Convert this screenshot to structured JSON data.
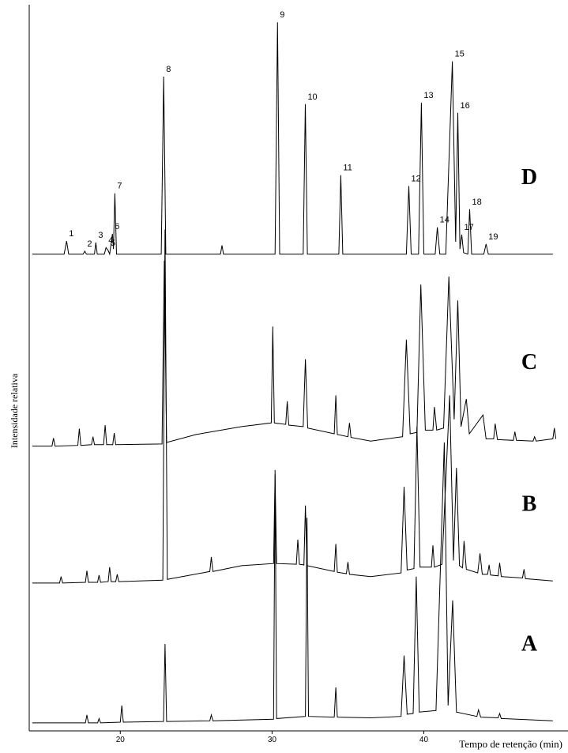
{
  "chart_data": {
    "type": "chromatogram",
    "ylabel": "Intensidade relativa",
    "xlabel": "Tempo de retenção (min)",
    "xlim": [
      14,
      49.5
    ],
    "ylim": [
      0,
      100
    ],
    "xticks": [
      20,
      30,
      40
    ],
    "color": "#000000",
    "series": [
      {
        "name": "D",
        "color": "#000000",
        "x": [
          14.2,
          16.3,
          16.46,
          16.6,
          17.55,
          17.66,
          17.77,
          18.3,
          18.39,
          18.48,
          18.95,
          19.06,
          19.2,
          19.3,
          19.48,
          19.55,
          19.64,
          19.75,
          22.7,
          22.86,
          23.0,
          26.6,
          26.7,
          26.8,
          30.2,
          30.36,
          30.5,
          32.05,
          32.19,
          32.33,
          34.4,
          34.53,
          34.66,
          38.85,
          39.01,
          39.17,
          39.65,
          39.84,
          40.0,
          40.75,
          40.89,
          41.05,
          41.45,
          41.88,
          42.1,
          42.24,
          42.38,
          42.5,
          42.62,
          42.9,
          43.02,
          43.15,
          43.95,
          44.1,
          44.25,
          48.5
        ],
        "values": [
          65.8,
          65.8,
          67.6,
          65.8,
          65.8,
          66.2,
          65.8,
          65.8,
          67.4,
          65.8,
          65.8,
          66.7,
          66.3,
          65.8,
          68.6,
          66.5,
          74.2,
          65.8,
          65.8,
          90.3,
          65.8,
          65.8,
          67.0,
          65.8,
          65.8,
          97.8,
          65.8,
          65.8,
          86.5,
          65.8,
          65.8,
          76.7,
          65.8,
          65.8,
          75.2,
          65.8,
          65.8,
          86.7,
          65.8,
          65.8,
          69.5,
          65.8,
          65.8,
          92.4,
          67.5,
          85.3,
          66.5,
          68.5,
          66.0,
          65.8,
          72.0,
          65.8,
          65.8,
          67.2,
          65.8,
          65.8
        ]
      },
      {
        "name": "C",
        "color": "#000000",
        "x": [
          14.2,
          15.5,
          15.6,
          15.7,
          17.2,
          17.3,
          17.4,
          18.1,
          18.2,
          18.3,
          18.9,
          19.0,
          19.1,
          19.5,
          19.6,
          19.7,
          22.75,
          22.9,
          23.05,
          25.0,
          28.0,
          29.95,
          30.05,
          30.15,
          30.9,
          31.0,
          31.1,
          32.05,
          32.2,
          32.35,
          34.1,
          34.2,
          34.3,
          35.0,
          35.1,
          35.2,
          36.5,
          38.6,
          38.85,
          39.1,
          39.55,
          39.8,
          40.1,
          40.6,
          40.7,
          40.85,
          41.3,
          41.65,
          42.0,
          42.24,
          42.45,
          42.8,
          43.0,
          43.9,
          44.1,
          44.6,
          44.7,
          44.85,
          45.9,
          46.0,
          46.1,
          47.2,
          47.3,
          47.4,
          48.5,
          48.6,
          48.7
        ],
        "values": [
          39.3,
          39.3,
          40.4,
          39.3,
          39.4,
          41.7,
          39.4,
          39.5,
          40.6,
          39.5,
          39.5,
          42.2,
          39.5,
          39.5,
          41.1,
          39.5,
          39.6,
          64.9,
          39.8,
          40.9,
          42.0,
          42.5,
          55.8,
          42.5,
          42.3,
          45.5,
          42.2,
          42.0,
          51.3,
          41.8,
          41.0,
          46.3,
          40.9,
          40.6,
          42.5,
          40.5,
          40.0,
          40.6,
          54.0,
          41.0,
          41.2,
          61.6,
          41.5,
          41.5,
          44.7,
          41.5,
          41.8,
          62.7,
          43.0,
          59.4,
          42.0,
          45.8,
          41.0,
          43.6,
          40.3,
          40.3,
          42.4,
          40.2,
          40.1,
          41.3,
          40.1,
          40.0,
          40.6,
          40.0,
          40.3,
          41.8,
          40.3
        ]
      },
      {
        "name": "B",
        "color": "#000000",
        "x": [
          14.2,
          16.0,
          16.1,
          16.2,
          17.7,
          17.8,
          17.9,
          18.5,
          18.6,
          18.7,
          19.2,
          19.3,
          19.4,
          19.7,
          19.8,
          19.9,
          22.8,
          22.95,
          23.1,
          25.9,
          26.0,
          26.1,
          28.0,
          30.1,
          30.2,
          30.3,
          31.6,
          31.7,
          31.8,
          32.1,
          32.2,
          32.3,
          34.1,
          34.2,
          34.3,
          34.9,
          35.0,
          35.1,
          36.5,
          38.5,
          38.7,
          38.9,
          39.35,
          39.55,
          39.75,
          40.5,
          40.6,
          40.7,
          41.2,
          41.7,
          41.95,
          42.15,
          42.35,
          42.55,
          42.65,
          42.8,
          43.55,
          43.7,
          43.85,
          44.2,
          44.3,
          44.4,
          44.9,
          45.0,
          45.1,
          46.5,
          46.6,
          46.7,
          48.5
        ],
        "values": [
          20.4,
          20.4,
          21.3,
          20.4,
          20.5,
          22.1,
          20.5,
          20.5,
          21.5,
          20.5,
          20.6,
          22.6,
          20.6,
          20.6,
          21.6,
          20.6,
          20.8,
          69.2,
          20.9,
          22.0,
          24.0,
          22.0,
          22.8,
          23.1,
          35.4,
          23.1,
          23.0,
          26.4,
          23.0,
          22.9,
          31.1,
          22.8,
          22.0,
          25.8,
          21.9,
          21.7,
          23.3,
          21.6,
          21.3,
          21.8,
          33.7,
          22.2,
          22.4,
          42.0,
          22.6,
          22.6,
          25.6,
          22.6,
          23.0,
          46.3,
          23.5,
          36.3,
          22.8,
          22.5,
          26.2,
          22.3,
          21.8,
          24.5,
          21.6,
          21.6,
          22.9,
          21.5,
          21.4,
          23.2,
          21.3,
          21.1,
          22.3,
          21.0,
          20.7
        ]
      },
      {
        "name": "A",
        "color": "#000000",
        "x": [
          14.2,
          17.7,
          17.8,
          17.9,
          18.5,
          18.6,
          18.7,
          20.0,
          20.1,
          20.2,
          22.85,
          22.95,
          23.05,
          25.9,
          26.0,
          26.1,
          30.1,
          30.2,
          30.3,
          32.2,
          32.3,
          32.4,
          34.1,
          34.2,
          34.3,
          36.5,
          38.5,
          38.7,
          38.9,
          39.3,
          39.5,
          39.7,
          40.8,
          41.35,
          41.6,
          41.9,
          42.15,
          43.5,
          43.6,
          43.75,
          44.9,
          45.0,
          45.1,
          48.5
        ],
        "values": [
          1.1,
          1.1,
          2.2,
          1.1,
          1.1,
          1.7,
          1.1,
          1.2,
          3.5,
          1.2,
          1.3,
          12.0,
          1.3,
          1.4,
          2.2,
          1.4,
          1.6,
          36.0,
          1.7,
          2.0,
          29.4,
          2.0,
          1.9,
          6.0,
          1.9,
          1.8,
          2.0,
          10.4,
          2.3,
          2.4,
          21.3,
          2.6,
          2.8,
          39.8,
          3.5,
          18.0,
          2.6,
          2.0,
          2.9,
          1.9,
          1.8,
          2.4,
          1.7,
          1.4
        ]
      }
    ],
    "peaks": [
      {
        "label": "1",
        "x": 16.46
      },
      {
        "label": "2",
        "x": 17.66
      },
      {
        "label": "3",
        "x": 18.39
      },
      {
        "label": "4",
        "x": 19.06
      },
      {
        "label": "5",
        "x": 19.2
      },
      {
        "label": "6",
        "x": 19.48
      },
      {
        "label": "7",
        "x": 19.64
      },
      {
        "label": "8",
        "x": 22.86
      },
      {
        "label": "9",
        "x": 30.36
      },
      {
        "label": "10",
        "x": 32.19
      },
      {
        "label": "11",
        "x": 34.53
      },
      {
        "label": "12",
        "x": 39.01
      },
      {
        "label": "13",
        "x": 39.84
      },
      {
        "label": "14",
        "x": 40.89
      },
      {
        "label": "15",
        "x": 41.88
      },
      {
        "label": "16",
        "x": 42.24
      },
      {
        "label": "17",
        "x": 42.5
      },
      {
        "label": "18",
        "x": 43.02
      },
      {
        "label": "19",
        "x": 44.1
      }
    ]
  }
}
